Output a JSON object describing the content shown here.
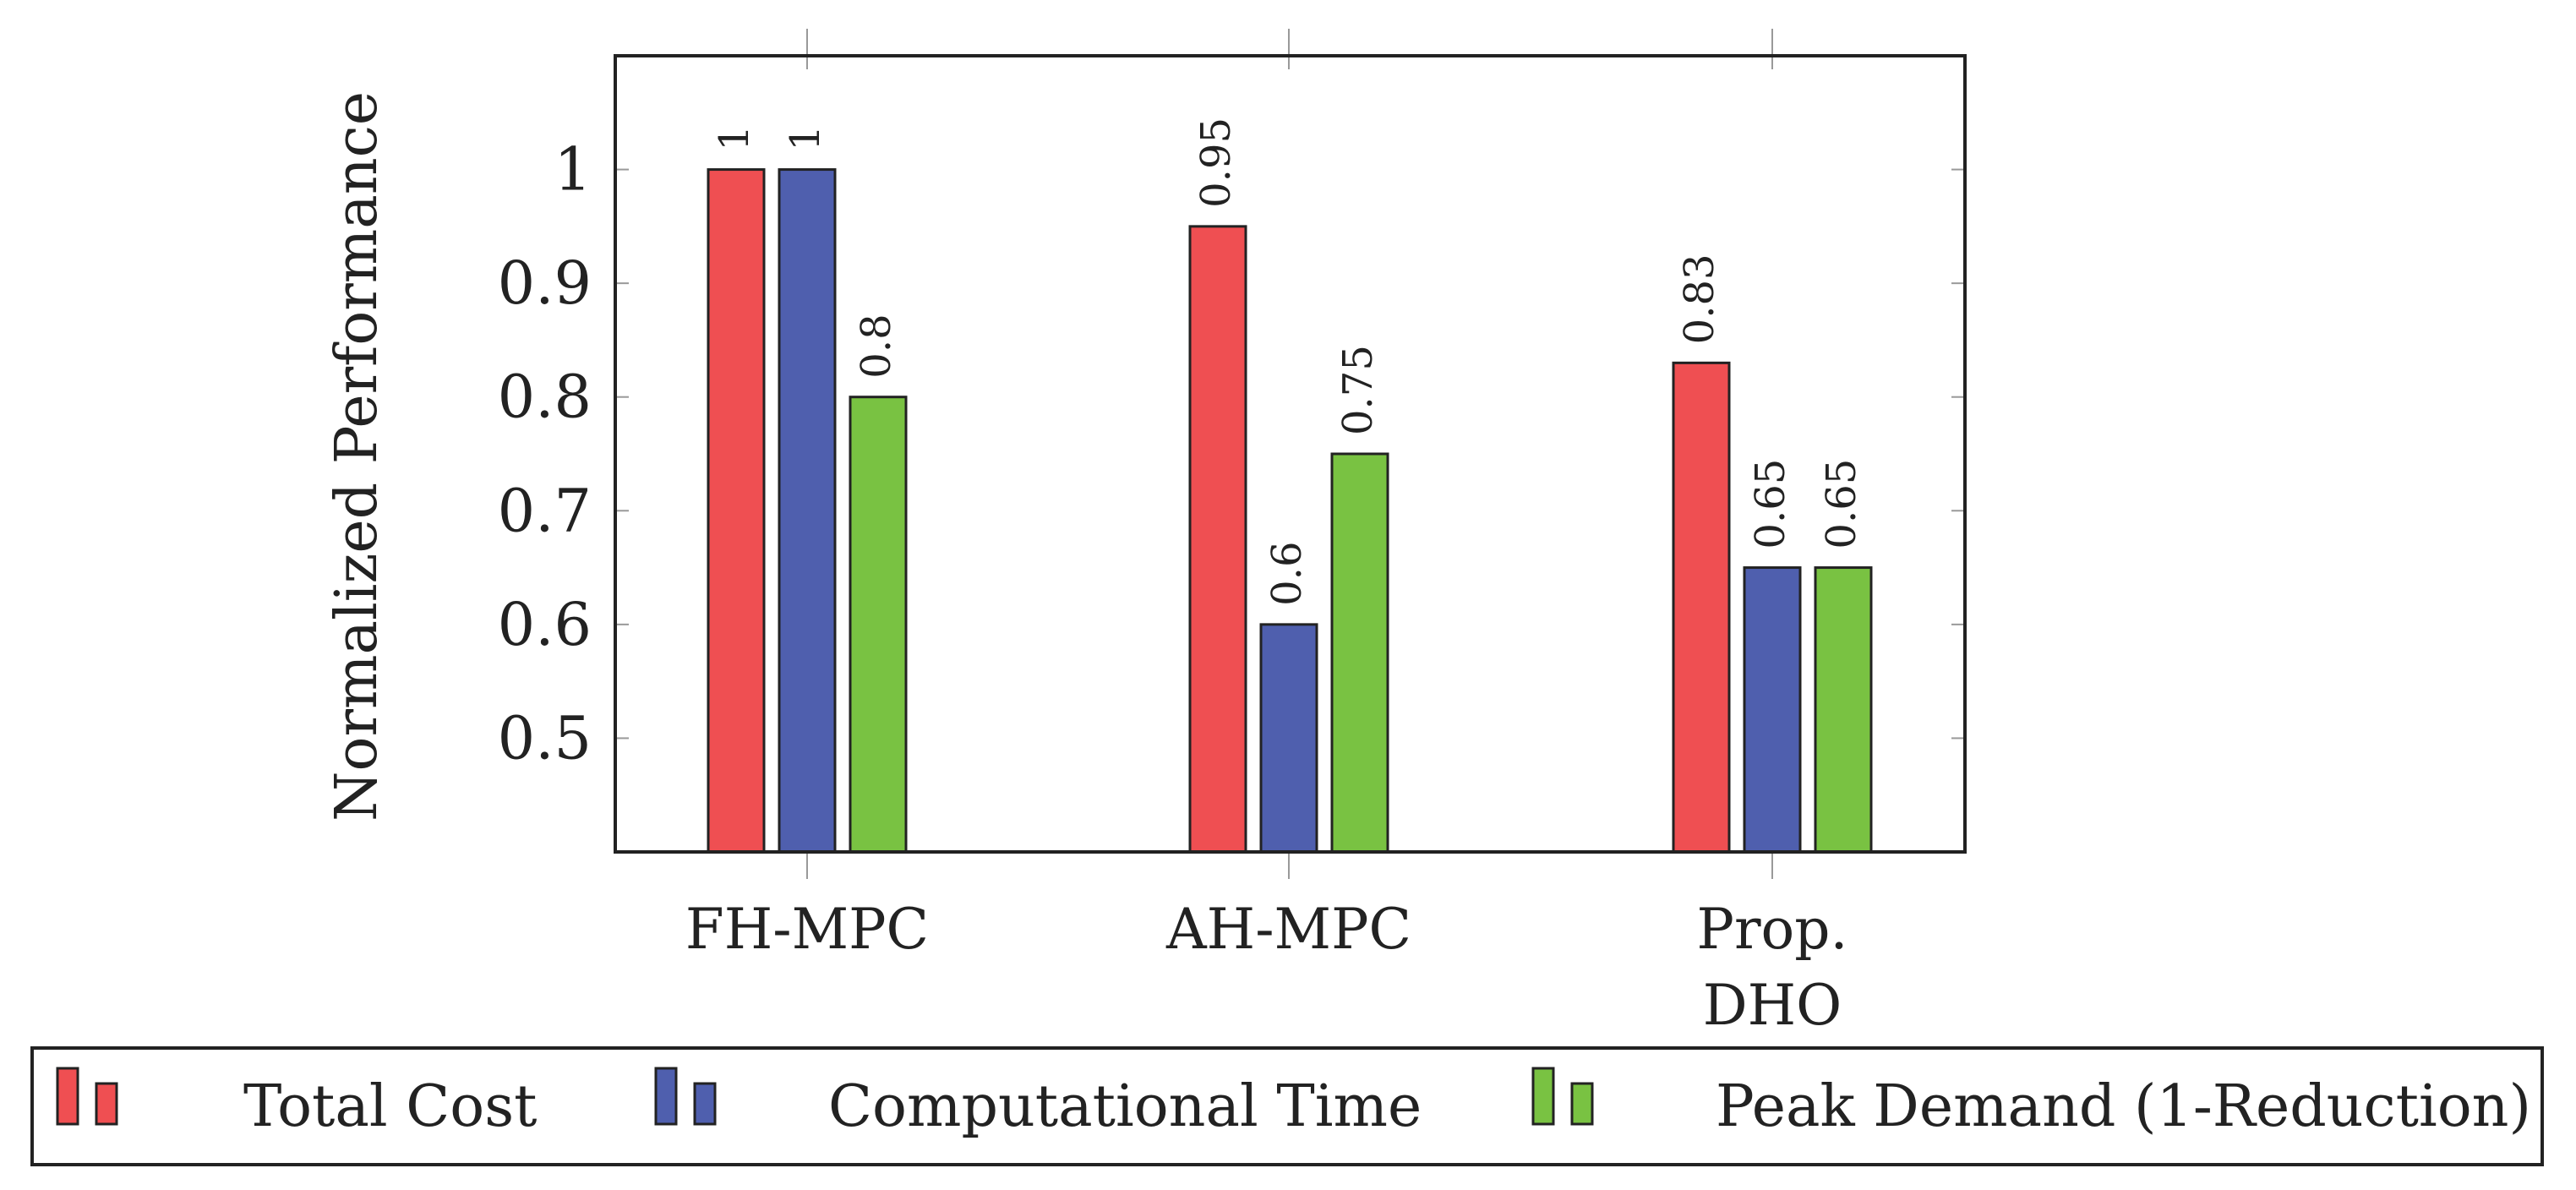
{
  "colors": {
    "total_cost": "#ef4f52",
    "computational_time": "#4f5fae",
    "peak_demand": "#79c242",
    "axis": "#222222",
    "tick": "#999999",
    "background": "#ffffff"
  },
  "chart_data": {
    "type": "bar",
    "title": "",
    "xlabel": "",
    "ylabel": "Normalized Performance",
    "categories": [
      [
        "FH-MPC"
      ],
      [
        "AH-MPC"
      ],
      [
        "Prop.",
        "DHO"
      ]
    ],
    "series": [
      {
        "name": "Total Cost",
        "color_key": "total_cost",
        "values": [
          1,
          0.95,
          0.83
        ],
        "labels": [
          "1",
          "0.95",
          "0.83"
        ]
      },
      {
        "name": "Computational Time",
        "color_key": "computational_time",
        "values": [
          1,
          0.6,
          0.65
        ],
        "labels": [
          "1",
          "0.6",
          "0.65"
        ]
      },
      {
        "name": "Peak Demand (1-Reduction)",
        "color_key": "peak_demand",
        "values": [
          0.8,
          0.75,
          0.65
        ],
        "labels": [
          "0.8",
          "0.75",
          "0.65"
        ]
      }
    ],
    "ylim": [
      0.4,
      1.1
    ],
    "yticks": [
      0.5,
      0.6,
      0.7,
      0.8,
      0.9,
      1
    ],
    "ytick_labels": [
      "0.5",
      "0.6",
      "0.7",
      "0.8",
      "0.9",
      "1"
    ],
    "grid": false,
    "legend_position": "bottom"
  }
}
